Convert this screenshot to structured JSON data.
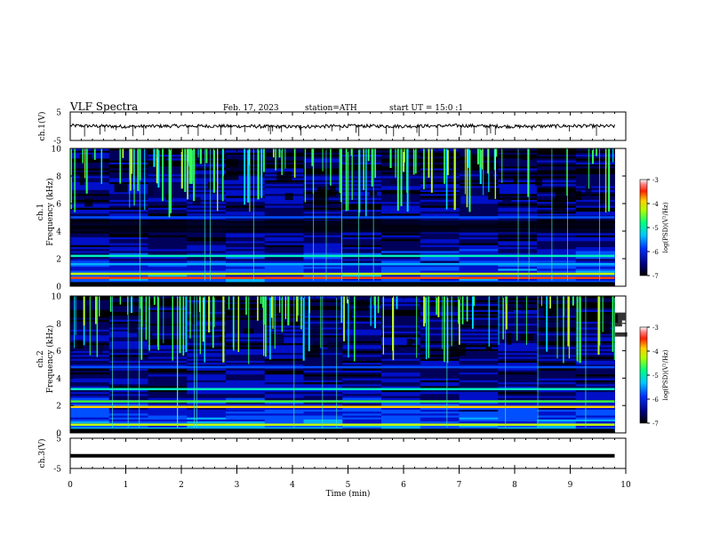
{
  "header": {
    "title": "VLF Spectra",
    "date": "Feb. 17, 2023",
    "station": "station=ATH",
    "start": "start UT = 15:0 :1"
  },
  "chart_data": [
    {
      "type": "line",
      "panel": "ch1-waveform",
      "ylabel": "ch.1(V)",
      "ylim": [
        -5,
        5
      ],
      "yticks": [
        "5",
        "-5"
      ],
      "x": [
        0,
        1,
        2,
        3,
        4,
        5,
        6,
        7,
        8,
        9,
        9.8
      ],
      "values": [
        0.2,
        -0.1,
        0.1,
        0.0,
        -0.2,
        0.1,
        0.0,
        0.2,
        -0.1,
        0.1,
        0.0
      ]
    },
    {
      "type": "heatmap",
      "panel": "ch1-spectrogram",
      "ylabel": "ch.1\nFrequency (kHz)",
      "ylim": [
        0,
        10
      ],
      "yticks": [
        "0",
        "2",
        "4",
        "6",
        "8",
        "10"
      ],
      "xlim": [
        0,
        9.8
      ],
      "colorbar": {
        "label": "log(PSD)(V²/Hz)",
        "ticks": [
          "-3",
          "-4",
          "-5",
          "-6",
          "-7"
        ],
        "range": [
          -7,
          -3
        ]
      },
      "bands_khz": [
        {
          "f": 0.6,
          "level": -3.4
        },
        {
          "f": 0.9,
          "level": -4.0
        },
        {
          "f": 1.6,
          "level": -5.2
        },
        {
          "f": 2.2,
          "level": -5.0
        },
        {
          "f": 4.3,
          "level": -7.0
        },
        {
          "f": 5.0,
          "level": -5.8
        }
      ]
    },
    {
      "type": "heatmap",
      "panel": "ch2-spectrogram",
      "ylabel": "ch.2\nFrequency (kHz)",
      "ylim": [
        0,
        10
      ],
      "yticks": [
        "0",
        "2",
        "4",
        "6",
        "8",
        "10"
      ],
      "xlim": [
        0,
        9.8
      ],
      "colorbar": {
        "label": "log(PSD)(V²/Hz)",
        "ticks": [
          "-3",
          "-4",
          "-5",
          "-6",
          "-7"
        ],
        "range": [
          -7,
          -3
        ]
      },
      "bands_khz": [
        {
          "f": 0.6,
          "level": -4.0
        },
        {
          "f": 1.9,
          "level": -3.8
        },
        {
          "f": 2.3,
          "level": -4.6
        },
        {
          "f": 3.2,
          "level": -5.0
        },
        {
          "f": 4.8,
          "level": -5.8
        }
      ]
    },
    {
      "type": "line",
      "panel": "ch3-waveform",
      "ylabel": "ch.3(V)",
      "ylim": [
        -5,
        5
      ],
      "yticks": [
        "5",
        "-5"
      ],
      "x": [
        0,
        9.8
      ],
      "values": [
        -0.8,
        -0.8
      ]
    }
  ],
  "xaxis": {
    "label": "Time (min)",
    "ticks": [
      "0",
      "1",
      "2",
      "3",
      "4",
      "5",
      "6",
      "7",
      "8",
      "9",
      "10"
    ],
    "xlim": [
      0,
      10
    ]
  }
}
